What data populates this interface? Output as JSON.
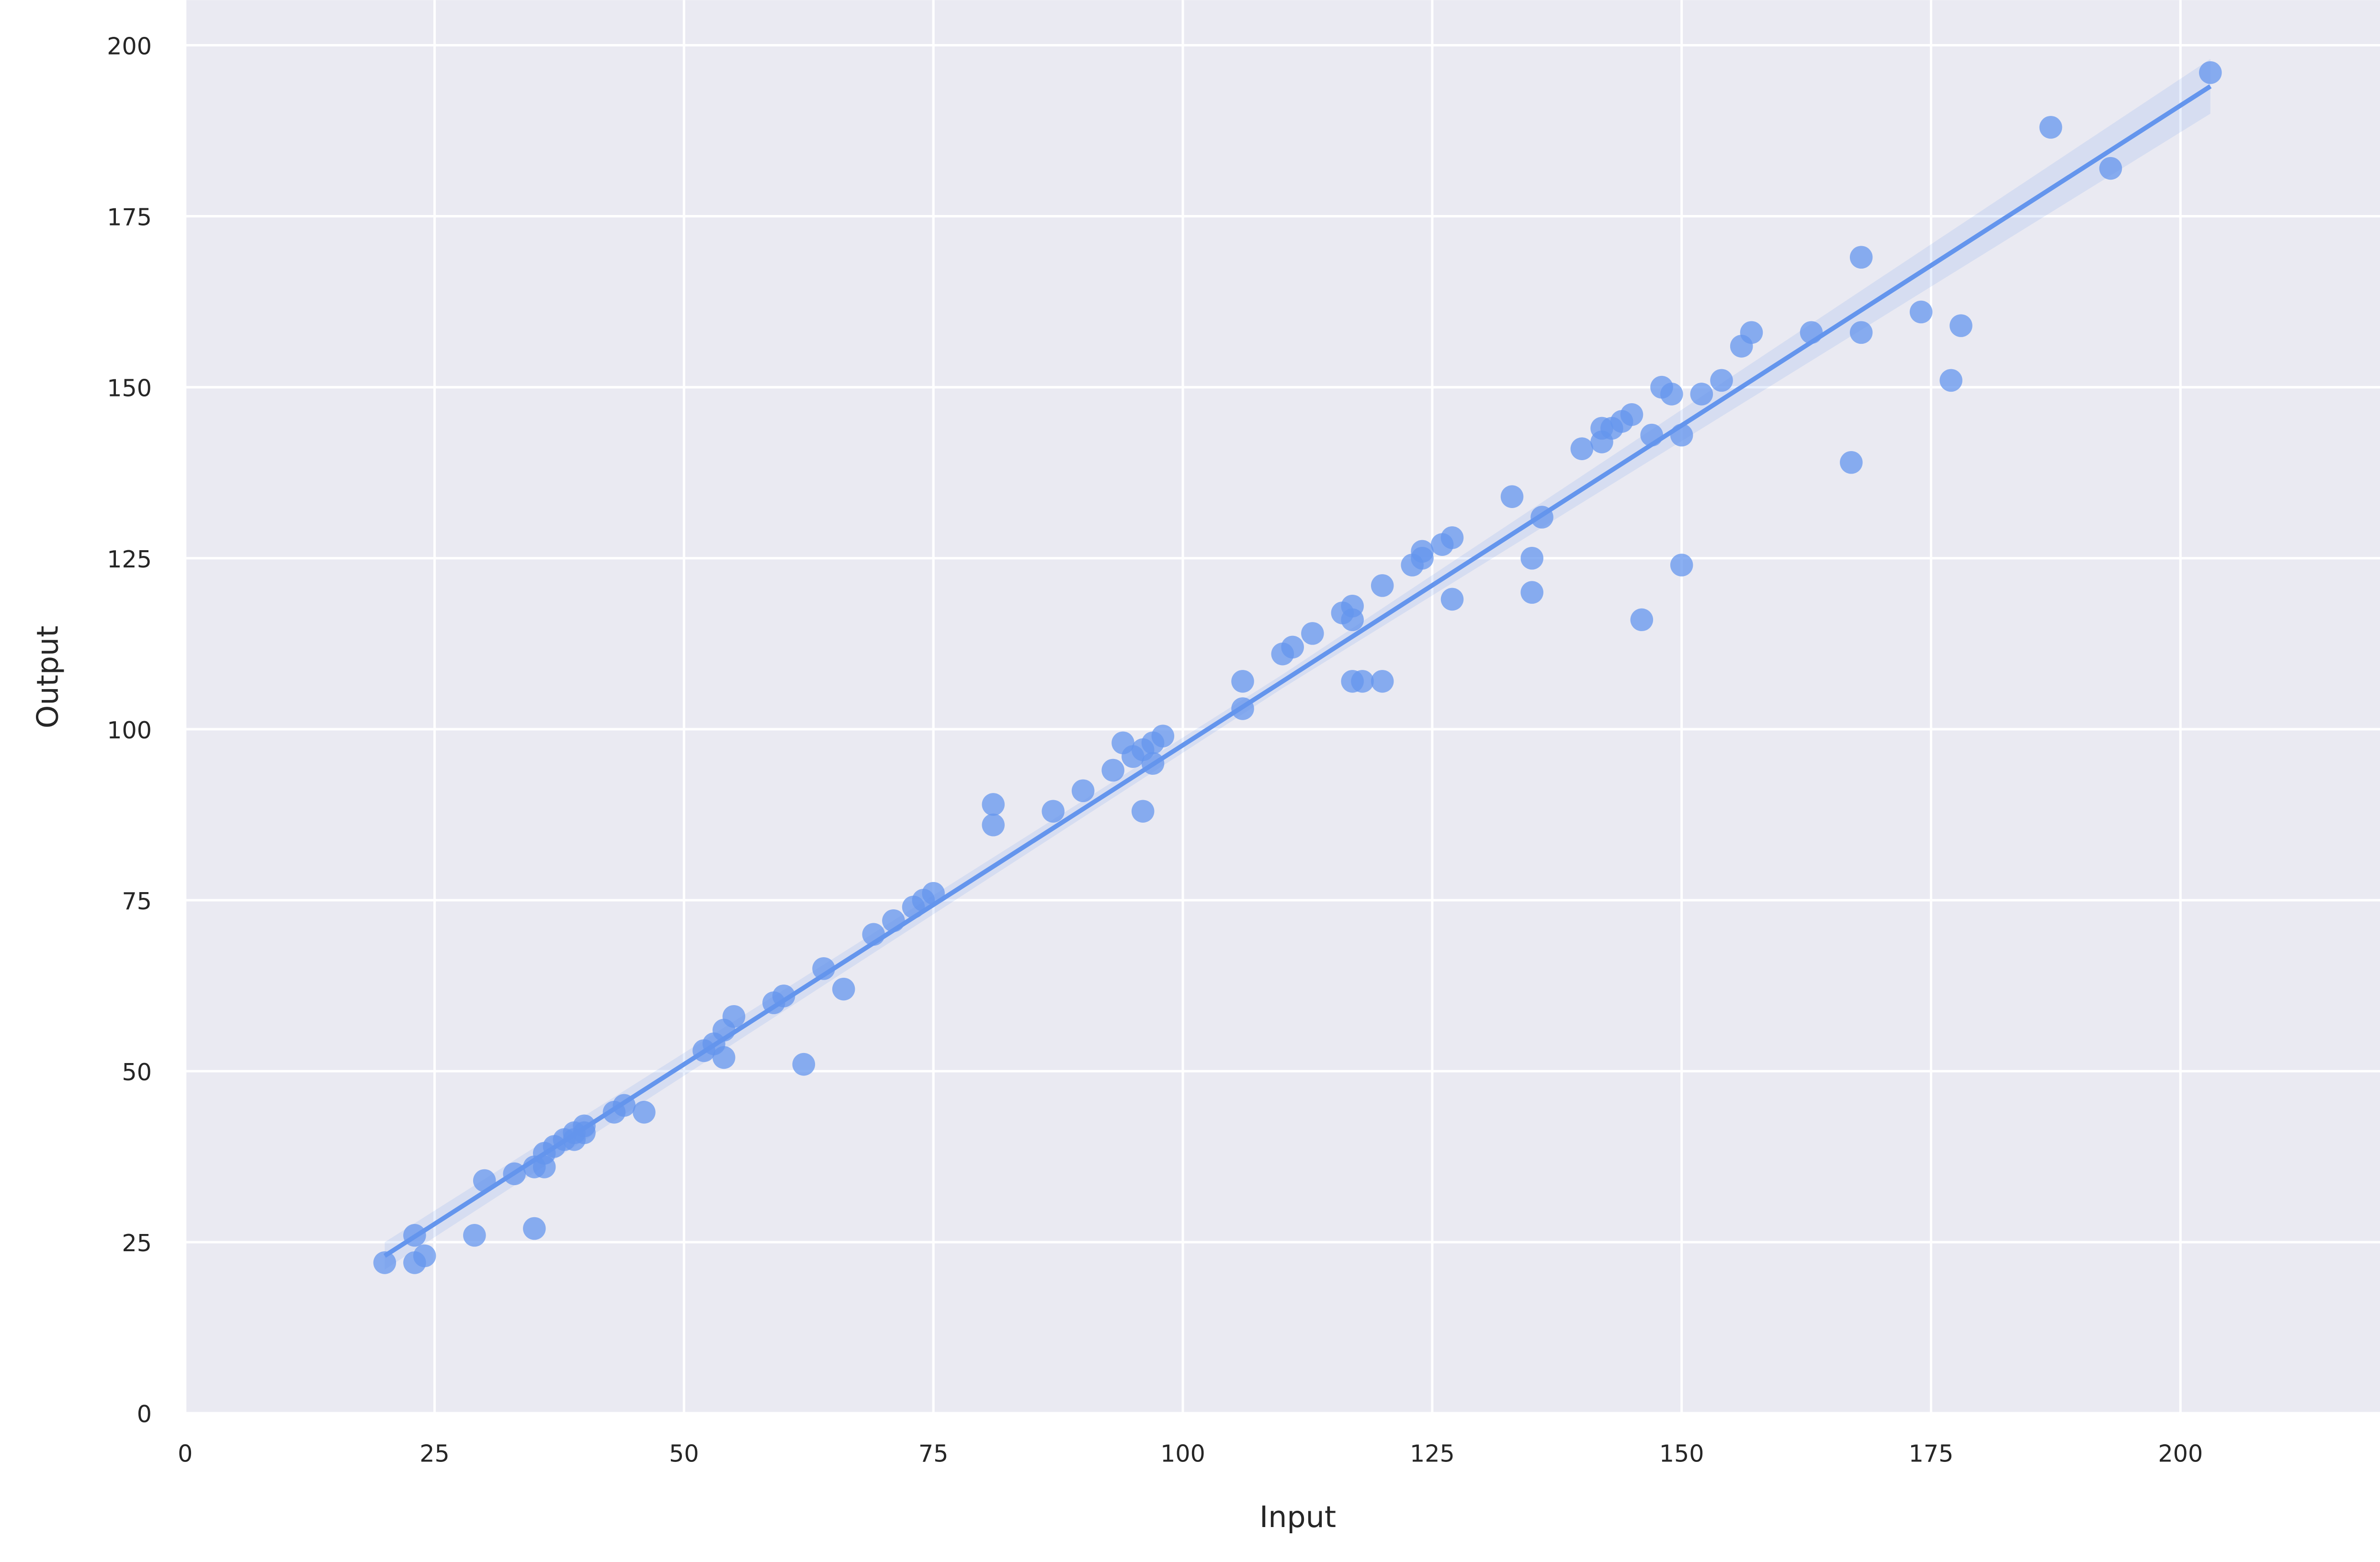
{
  "chart_data": {
    "type": "scatter",
    "x_label": "Input",
    "y_label": "Output",
    "xlim": [
      0,
      220
    ],
    "ylim": [
      0,
      206.6
    ],
    "xticks": [
      0,
      25,
      50,
      75,
      100,
      125,
      150,
      175,
      200
    ],
    "yticks": [
      0,
      25,
      50,
      75,
      100,
      125,
      150,
      175,
      200
    ],
    "grid": true,
    "background": "#eaeaf2",
    "color": "#6495ed",
    "x": [
      20,
      23,
      23,
      24,
      29,
      30,
      33,
      35,
      35,
      36,
      36,
      37,
      38,
      39,
      39,
      40,
      40,
      43,
      44,
      46,
      52,
      53,
      54,
      54,
      55,
      59,
      60,
      62,
      64,
      66,
      69,
      71,
      73,
      74,
      75,
      81,
      81,
      87,
      90,
      93,
      94,
      95,
      96,
      96,
      97,
      97,
      98,
      106,
      106,
      110,
      111,
      113,
      116,
      117,
      117,
      117,
      118,
      120,
      120,
      123,
      124,
      124,
      126,
      127,
      127,
      133,
      135,
      135,
      136,
      140,
      142,
      142,
      143,
      144,
      145,
      146,
      147,
      148,
      149,
      150,
      150,
      152,
      154,
      156,
      157,
      163,
      167,
      168,
      168,
      174,
      177,
      178,
      187,
      193,
      203
    ],
    "y": [
      22,
      26,
      22,
      23,
      26,
      34,
      35,
      27,
      36,
      36,
      38,
      39,
      40,
      41,
      40,
      42,
      41,
      44,
      45,
      44,
      53,
      54,
      56,
      52,
      58,
      60,
      61,
      51,
      65,
      62,
      70,
      72,
      74,
      75,
      76,
      89,
      86,
      88,
      91,
      94,
      98,
      96,
      88,
      97,
      95,
      98,
      99,
      107,
      103,
      111,
      112,
      114,
      117,
      118,
      116,
      107,
      107,
      107,
      121,
      124,
      126,
      125,
      127,
      128,
      119,
      134,
      125,
      120,
      131,
      141,
      144,
      142,
      144,
      145,
      146,
      116,
      143,
      150,
      149,
      143,
      124,
      149,
      151,
      156,
      158,
      158,
      139,
      169,
      158,
      161,
      151,
      159,
      188,
      182,
      196
    ],
    "regression": {
      "x": [
        20,
        110,
        203
      ],
      "y": [
        23,
        107,
        194
      ],
      "ci_lower": [
        21,
        106,
        190
      ],
      "ci_upper": [
        25,
        108,
        198
      ]
    }
  }
}
